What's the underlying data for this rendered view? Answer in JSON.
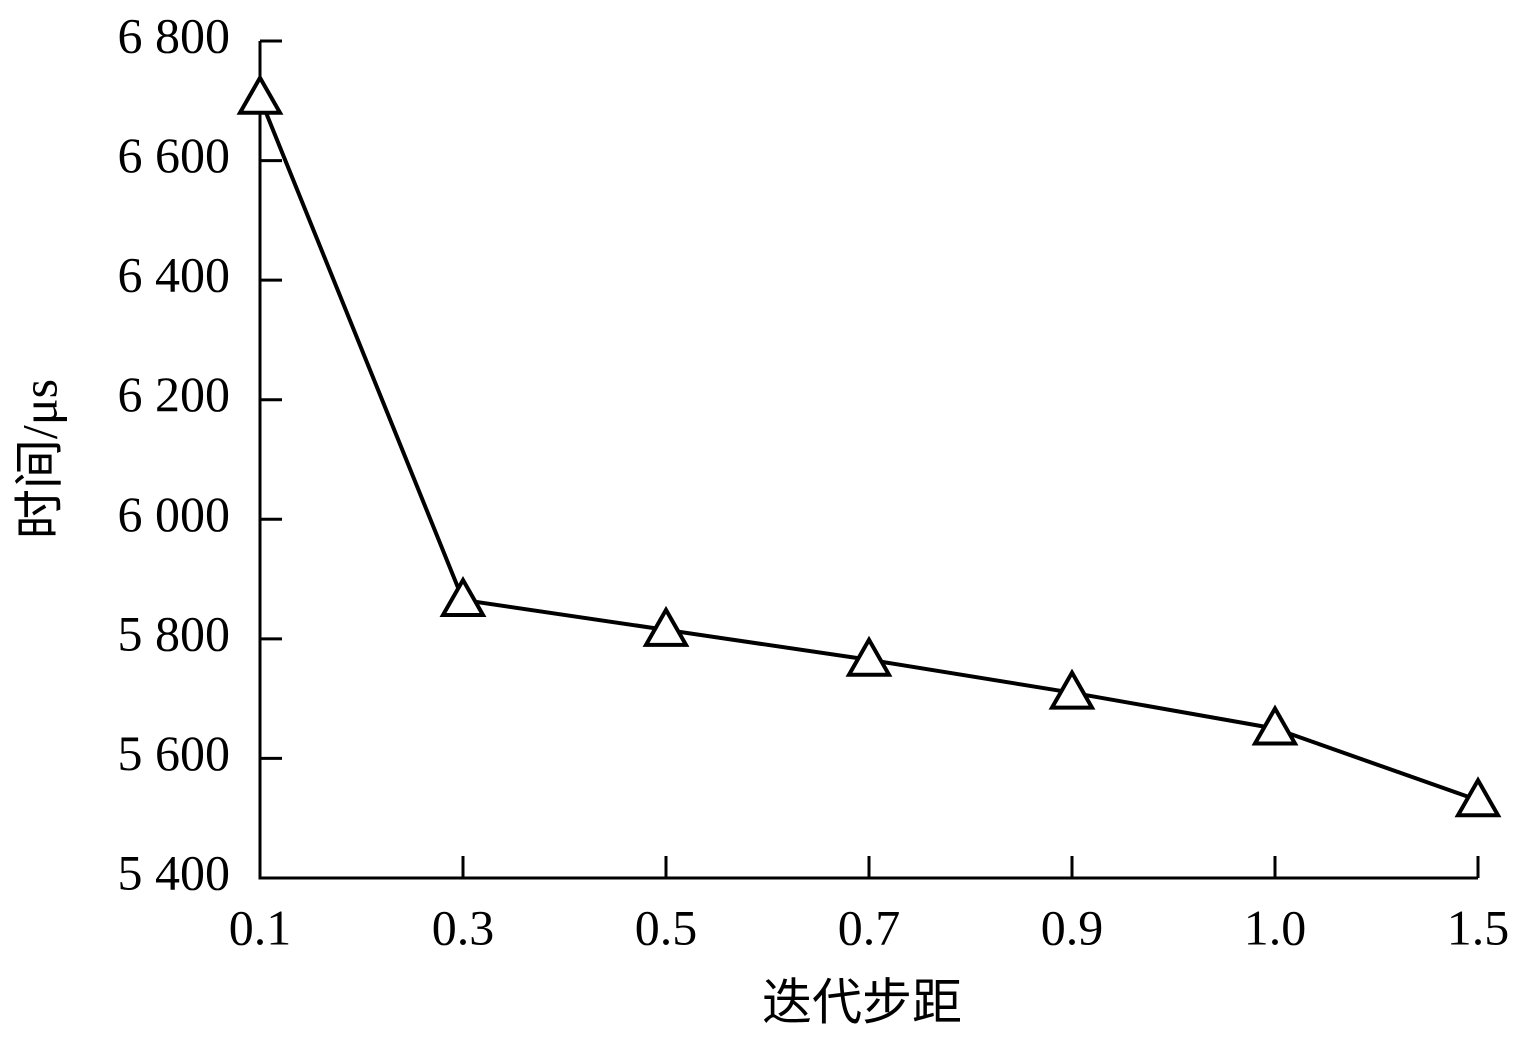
{
  "chart_data": {
    "type": "line",
    "xlabel": "迭代步距",
    "ylabel": "时间/μs",
    "categories": [
      "0.1",
      "0.3",
      "0.5",
      "0.7",
      "0.9",
      "1.0",
      "1.5"
    ],
    "series": [
      {
        "color": "#000000",
        "marker": "triangle",
        "values": [
          6705,
          5865,
          5815,
          5765,
          5710,
          5650,
          5530
        ]
      }
    ],
    "ylim": [
      5400,
      6800
    ],
    "yticks": [
      {
        "value": 5400,
        "label": "5 400"
      },
      {
        "value": 5600,
        "label": "5 600"
      },
      {
        "value": 5800,
        "label": "5 800"
      },
      {
        "value": 6000,
        "label": "6 000"
      },
      {
        "value": 6200,
        "label": "6 200"
      },
      {
        "value": 6400,
        "label": "6 400"
      },
      {
        "value": 6600,
        "label": "6 600"
      },
      {
        "value": 6800,
        "label": "6 800"
      }
    ],
    "grid": false
  }
}
